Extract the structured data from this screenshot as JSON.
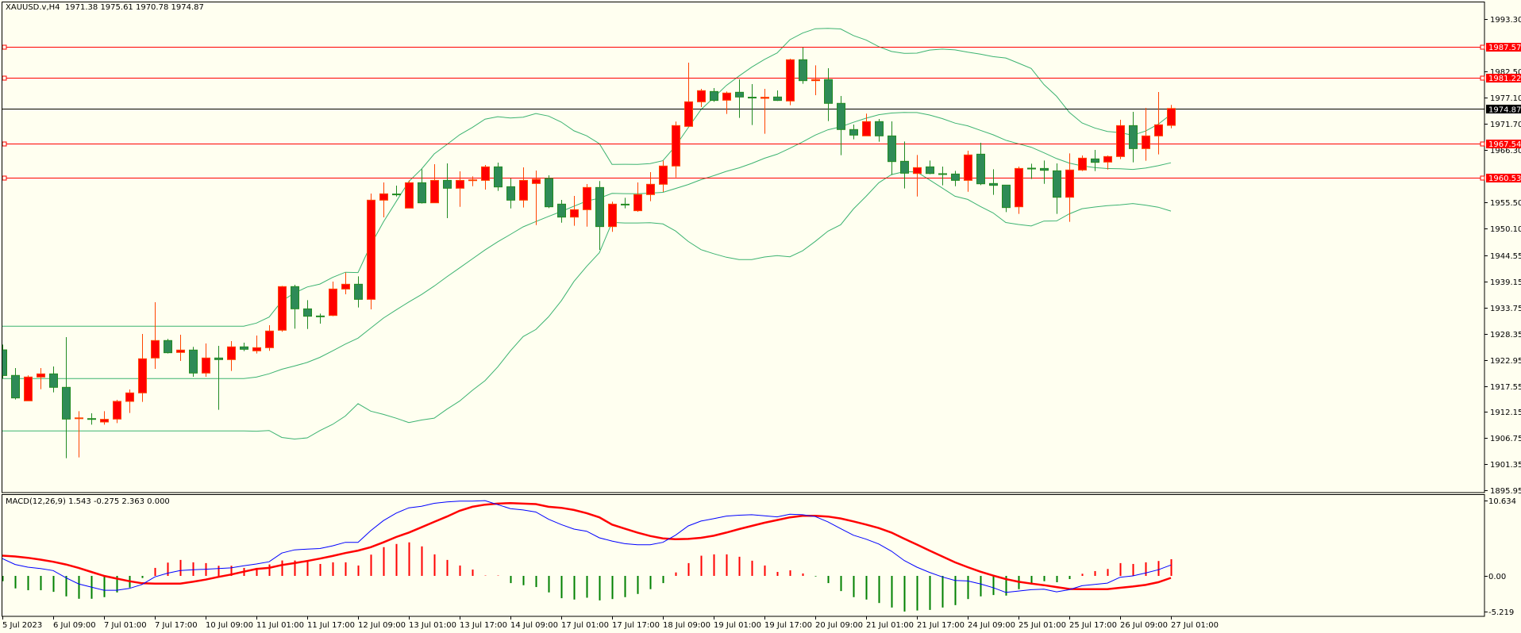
{
  "header": {
    "symbol": "XAUUSD.v,H4",
    "ohlc": "1971.38 1975.61 1970.78 1974.87"
  },
  "macd_header": {
    "label": "MACD(12,26,9)",
    "values": "1.543 -0.275 2.363 0.000"
  },
  "colors": {
    "background": "#fffff0",
    "bull_fill": "#ff0000",
    "bull_border": "#ff4500",
    "bear_fill": "#2e8b57",
    "bear_border": "#228b22",
    "bands": "#3cb371",
    "macd_main": "#0000ff",
    "macd_signal": "#ff0000",
    "hist_up": "#ff0000",
    "hist_down": "#008000",
    "level": "#ff0000",
    "price_line": "#000000"
  },
  "chart_data": {
    "type": "candlestick",
    "symbol": "XAUUSD.v",
    "timeframe": "H4",
    "ylim": [
      1895.95,
      1993.3
    ],
    "price_ticks": [
      "1993.30",
      "1982.50",
      "1977.10",
      "1971.70",
      "1966.30",
      "1955.50",
      "1950.10",
      "1944.55",
      "1939.15",
      "1933.75",
      "1928.35",
      "1922.95",
      "1917.55",
      "1912.15",
      "1906.75",
      "1901.35",
      "1895.95"
    ],
    "levels": [
      {
        "value": "1987.57",
        "color": "#ff0000",
        "label_fill": "#ff0000"
      },
      {
        "value": "1981.22",
        "color": "#ff0000",
        "label_fill": "#ff0000"
      },
      {
        "value": "1967.54",
        "color": "#ff0000",
        "label_fill": "#ff0000"
      },
      {
        "value": "1960.53",
        "color": "#ff0000",
        "label_fill": "#ff0000"
      }
    ],
    "current_price": "1974.87",
    "time_labels": [
      {
        "bar": 0,
        "text": "5 Jul 2023"
      },
      {
        "bar": 4,
        "text": "6 Jul 09:00"
      },
      {
        "bar": 8,
        "text": "7 Jul 01:00"
      },
      {
        "bar": 12,
        "text": "7 Jul 17:00"
      },
      {
        "bar": 16,
        "text": "10 Jul 09:00"
      },
      {
        "bar": 20,
        "text": "11 Jul 01:00"
      },
      {
        "bar": 24,
        "text": "11 Jul 17:00"
      },
      {
        "bar": 28,
        "text": "12 Jul 09:00"
      },
      {
        "bar": 32,
        "text": "13 Jul 01:00"
      },
      {
        "bar": 36,
        "text": "13 Jul 17:00"
      },
      {
        "bar": 40,
        "text": "14 Jul 09:00"
      },
      {
        "bar": 44,
        "text": "17 Jul 01:00"
      },
      {
        "bar": 48,
        "text": "17 Jul 17:00"
      },
      {
        "bar": 52,
        "text": "18 Jul 09:00"
      },
      {
        "bar": 56,
        "text": "19 Jul 01:00"
      },
      {
        "bar": 60,
        "text": "19 Jul 17:00"
      },
      {
        "bar": 64,
        "text": "20 Jul 09:00"
      },
      {
        "bar": 68,
        "text": "21 Jul 01:00"
      },
      {
        "bar": 72,
        "text": "21 Jul 17:00"
      },
      {
        "bar": 76,
        "text": "24 Jul 09:00"
      },
      {
        "bar": 80,
        "text": "25 Jul 01:00"
      },
      {
        "bar": 84,
        "text": "25 Jul 17:00"
      },
      {
        "bar": 88,
        "text": "26 Jul 09:00"
      },
      {
        "bar": 92,
        "text": "27 Jul 01:00"
      }
    ],
    "ohlc": [
      [
        1925.0,
        1926.1,
        1919.1,
        1919.7
      ],
      [
        1919.72,
        1921.24,
        1914.74,
        1915.07
      ],
      [
        1914.47,
        1919.72,
        1914.47,
        1919.39
      ],
      [
        1919.39,
        1921.24,
        1916.87,
        1920.04
      ],
      [
        1920.04,
        1921.57,
        1916.22,
        1917.26
      ],
      [
        1917.26,
        1927.64,
        1902.62,
        1910.7
      ],
      [
        1910.9,
        1912.34,
        1902.78,
        1910.95
      ],
      [
        1910.8,
        1911.9,
        1909.55,
        1910.65
      ],
      [
        1910.1,
        1912.34,
        1909.55,
        1910.65
      ],
      [
        1910.7,
        1914.69,
        1909.88,
        1914.36
      ],
      [
        1914.36,
        1916.82,
        1911.96,
        1916.11
      ],
      [
        1916.11,
        1928.29,
        1914.25,
        1923.16
      ],
      [
        1923.32,
        1934.85,
        1921.08,
        1926.93
      ],
      [
        1926.93,
        1927.26,
        1924.25,
        1924.41
      ],
      [
        1924.47,
        1928.13,
        1922.72,
        1924.96
      ],
      [
        1924.96,
        1925.62,
        1919.44,
        1920.21
      ],
      [
        1920.21,
        1926.33,
        1919.44,
        1923.32
      ],
      [
        1923.32,
        1925.83,
        1912.62,
        1922.99
      ],
      [
        1922.99,
        1926.82,
        1920.64,
        1925.62
      ],
      [
        1925.62,
        1926.49,
        1924.74,
        1925.12
      ],
      [
        1924.8,
        1927.97,
        1924.25,
        1925.45
      ],
      [
        1925.45,
        1930.1,
        1924.8,
        1928.89
      ],
      [
        1929.06,
        1938.23,
        1928.73,
        1938.07
      ],
      [
        1938.07,
        1938.45,
        1929.38,
        1933.48
      ],
      [
        1933.47,
        1935.28,
        1929.32,
        1931.95
      ],
      [
        1932.0,
        1932.49,
        1930.42,
        1931.9
      ],
      [
        1932.11,
        1939.1,
        1931.95,
        1937.57
      ],
      [
        1937.57,
        1940.96,
        1936.48,
        1938.56
      ],
      [
        1938.56,
        1940.19,
        1933.75,
        1935.44
      ],
      [
        1935.44,
        1957.29,
        1933.37,
        1955.93
      ],
      [
        1955.93,
        1959.59,
        1952.38,
        1957.24
      ],
      [
        1957.2,
        1958.93,
        1956.69,
        1957.1
      ],
      [
        1954.29,
        1960.02,
        1954.29,
        1959.53
      ],
      [
        1959.53,
        1962.32,
        1955.22,
        1955.38
      ],
      [
        1955.38,
        1963.36,
        1955.38,
        1960.02
      ],
      [
        1960.02,
        1963.52,
        1952.21,
        1958.39
      ],
      [
        1958.39,
        1961.88,
        1954.56,
        1960.02
      ],
      [
        1960.02,
        1960.84,
        1958.82,
        1960.13
      ],
      [
        1960.02,
        1963.19,
        1958.11,
        1962.81
      ],
      [
        1962.81,
        1963.68,
        1957.84,
        1958.66
      ],
      [
        1958.71,
        1960.41,
        1954.23,
        1955.93
      ],
      [
        1955.93,
        1962.7,
        1954.4,
        1960.02
      ],
      [
        1959.37,
        1962.05,
        1950.79,
        1960.24
      ],
      [
        1960.41,
        1961.06,
        1954.29,
        1954.56
      ],
      [
        1955.11,
        1955.98,
        1951.28,
        1952.43
      ],
      [
        1952.43,
        1956.8,
        1950.63,
        1953.96
      ],
      [
        1953.96,
        1959.26,
        1950.46,
        1958.55
      ],
      [
        1958.55,
        1959.87,
        1945.66,
        1950.47
      ],
      [
        1950.47,
        1955.61,
        1949.38,
        1955.11
      ],
      [
        1955.1,
        1956.42,
        1954.24,
        1955.0
      ],
      [
        1953.75,
        1959.59,
        1953.53,
        1957.08
      ],
      [
        1957.08,
        1961.72,
        1955.71,
        1959.21
      ],
      [
        1959.21,
        1964.07,
        1957.63,
        1962.98
      ],
      [
        1962.98,
        1972.16,
        1960.63,
        1971.34
      ],
      [
        1971.17,
        1984.34,
        1971.06,
        1976.25
      ],
      [
        1976.25,
        1978.93,
        1975.16,
        1978.55
      ],
      [
        1978.38,
        1979.1,
        1976.25,
        1976.53
      ],
      [
        1976.58,
        1978.38,
        1973.74,
        1978.06
      ],
      [
        1978.22,
        1980.9,
        1972.92,
        1977.24
      ],
      [
        1977.2,
        1979.91,
        1971.45,
        1977.1
      ],
      [
        1976.97,
        1978.93,
        1969.64,
        1977.19
      ],
      [
        1977.24,
        1978.6,
        1976.42,
        1976.53
      ],
      [
        1976.42,
        1985.16,
        1975.54,
        1984.94
      ],
      [
        1984.94,
        1987.45,
        1979.97,
        1980.62
      ],
      [
        1980.62,
        1983.79,
        1977.62,
        1980.84
      ],
      [
        1980.84,
        1983.19,
        1972.27,
        1975.93
      ],
      [
        1975.93,
        1977.46,
        1965.22,
        1970.52
      ],
      [
        1970.52,
        1971.56,
        1968.5,
        1969.37
      ],
      [
        1969.21,
        1973.8,
        1969.21,
        1972.16
      ],
      [
        1972.16,
        1972.7,
        1968.0,
        1969.21
      ],
      [
        1969.2,
        1972.21,
        1961.12,
        1963.9
      ],
      [
        1963.96,
        1968.05,
        1958.33,
        1961.5
      ],
      [
        1961.44,
        1965.27,
        1956.69,
        1962.65
      ],
      [
        1962.81,
        1964.12,
        1961.28,
        1961.44
      ],
      [
        1961.4,
        1962.86,
        1958.99,
        1961.33
      ],
      [
        1961.33,
        1961.99,
        1958.82,
        1960.02
      ],
      [
        1960.02,
        1966.14,
        1957.67,
        1965.27
      ],
      [
        1965.43,
        1967.78,
        1959.04,
        1959.31
      ],
      [
        1959.37,
        1962.32,
        1957.02,
        1958.99
      ],
      [
        1959.04,
        1959.04,
        1953.47,
        1954.4
      ],
      [
        1954.56,
        1962.86,
        1953.09,
        1962.48
      ],
      [
        1962.54,
        1963.47,
        1960.3,
        1962.4
      ],
      [
        1962.48,
        1964.12,
        1959.31,
        1962.1
      ],
      [
        1961.99,
        1963.52,
        1953.09,
        1956.53
      ],
      [
        1956.53,
        1965.6,
        1951.45,
        1962.16
      ],
      [
        1962.16,
        1965.16,
        1961.94,
        1964.61
      ],
      [
        1964.45,
        1966.31,
        1961.94,
        1963.74
      ],
      [
        1963.8,
        1965.16,
        1962.26,
        1964.94
      ],
      [
        1964.94,
        1972.53,
        1964.4,
        1971.33
      ],
      [
        1971.33,
        1974.17,
        1963.74,
        1966.58
      ],
      [
        1966.58,
        1974.99,
        1964.07,
        1969.2
      ],
      [
        1969.2,
        1978.27,
        1965.38,
        1971.5
      ],
      [
        1971.38,
        1975.61,
        1970.78,
        1974.87
      ]
    ],
    "bollinger": {
      "period": 20,
      "deviations": 2
    },
    "macd": {
      "ylim": [
        -5.219,
        10.634
      ],
      "ticks": [
        "10.634",
        "0.00",
        "-5.219"
      ],
      "main": [
        2.45,
        1.62,
        1.24,
        1.05,
        0.75,
        -0.26,
        -1.13,
        -1.58,
        -2.03,
        -2.03,
        -1.77,
        -1.21,
        -0.15,
        0.38,
        0.75,
        0.87,
        0.94,
        1.05,
        1.13,
        1.43,
        1.69,
        2.0,
        3.24,
        3.69,
        3.8,
        3.88,
        4.26,
        4.75,
        4.75,
        6.4,
        7.83,
        8.89,
        9.64,
        9.87,
        10.28,
        10.47,
        10.58,
        10.58,
        10.66,
        10.09,
        9.53,
        9.34,
        9.04,
        8.02,
        7.27,
        6.63,
        6.33,
        5.39,
        4.93,
        4.56,
        4.41,
        4.41,
        4.75,
        5.76,
        7.08,
        7.76,
        8.1,
        8.47,
        8.59,
        8.66,
        8.51,
        8.36,
        8.74,
        8.66,
        8.4,
        7.65,
        6.7,
        5.76,
        5.2,
        4.52,
        3.5,
        2.18,
        1.24,
        0.49,
        -0.15,
        -0.64,
        -0.72,
        -1.13,
        -1.66,
        -2.34,
        -2.15,
        -1.96,
        -1.88,
        -2.26,
        -1.96,
        -1.39,
        -1.21,
        -1.02,
        -0.19,
        0.0,
        0.41,
        0.87,
        1.54
      ],
      "signal": [
        2.86,
        2.75,
        2.56,
        2.3,
        2.0,
        1.62,
        1.13,
        0.56,
        0.0,
        -0.38,
        -0.75,
        -1.05,
        -1.09,
        -1.09,
        -1.09,
        -0.83,
        -0.53,
        -0.15,
        0.19,
        0.6,
        0.98,
        1.13,
        1.54,
        1.81,
        2.11,
        2.45,
        2.82,
        3.24,
        3.58,
        4.07,
        4.75,
        5.5,
        6.14,
        6.89,
        7.65,
        8.4,
        9.23,
        9.79,
        10.09,
        10.24,
        10.32,
        10.24,
        10.17,
        9.79,
        9.64,
        9.34,
        8.89,
        8.29,
        7.27,
        6.7,
        6.14,
        5.65,
        5.31,
        5.2,
        5.24,
        5.39,
        5.69,
        6.14,
        6.63,
        7.08,
        7.53,
        7.91,
        8.29,
        8.51,
        8.51,
        8.4,
        8.14,
        7.72,
        7.27,
        6.78,
        6.14,
        5.27,
        4.44,
        3.58,
        2.75,
        1.92,
        1.24,
        0.6,
        0.04,
        -0.45,
        -0.83,
        -1.09,
        -1.32,
        -1.58,
        -1.85,
        -1.88,
        -1.88,
        -1.88,
        -1.69,
        -1.51,
        -1.28,
        -0.9,
        -0.28
      ],
      "histogram": [
        -0.75,
        -1.77,
        -2.03,
        -2.03,
        -2.26,
        -2.9,
        -3.24,
        -3.24,
        -3.01,
        -2.34,
        -1.66,
        -0.3,
        1.13,
        1.88,
        2.26,
        1.92,
        1.81,
        1.43,
        1.43,
        1.13,
        1.13,
        1.62,
        2.18,
        2.18,
        2.11,
        1.69,
        1.92,
        1.92,
        1.47,
        3.01,
        4.07,
        4.52,
        4.75,
        4.18,
        3.05,
        2.26,
        1.47,
        0.9,
        0.05,
        0.05,
        -1.02,
        -1.32,
        -1.58,
        -2.34,
        -3.16,
        -3.35,
        -3.09,
        -3.47,
        -3.28,
        -3.01,
        -2.56,
        -1.88,
        -1.02,
        0.49,
        1.81,
        2.86,
        3.05,
        3.05,
        2.71,
        2.15,
        1.47,
        0.56,
        0.79,
        0.34,
        -0.08,
        -1.02,
        -2.15,
        -3.01,
        -3.35,
        -3.84,
        -4.48,
        -5.05,
        -4.9,
        -4.82,
        -4.48,
        -4.14,
        -3.28,
        -2.9,
        -2.71,
        -2.79,
        -1.88,
        -1.21,
        -0.75,
        -0.9,
        -0.45,
        0.3,
        0.68,
        0.98,
        1.81,
        1.69,
        1.92,
        2.11,
        2.36
      ]
    }
  }
}
